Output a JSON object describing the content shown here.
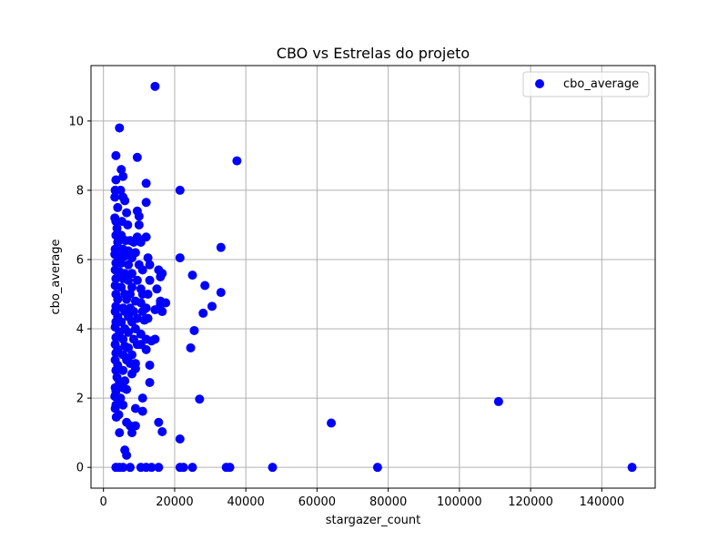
{
  "chart_data": {
    "type": "scatter",
    "title": "CBO vs Estrelas do projeto",
    "xlabel": "stargazer_count",
    "ylabel": "cbo_average",
    "xlim": [
      -3500,
      155000
    ],
    "ylim": [
      -0.6,
      11.6
    ],
    "x_ticks": [
      0,
      20000,
      40000,
      60000,
      80000,
      100000,
      120000,
      140000
    ],
    "x_tick_labels": [
      "0",
      "20000",
      "40000",
      "60000",
      "80000",
      "100000",
      "120000",
      "140000"
    ],
    "y_ticks": [
      0,
      2,
      4,
      6,
      8,
      10
    ],
    "y_tick_labels": [
      "0",
      "2",
      "4",
      "6",
      "8",
      "10"
    ],
    "grid": true,
    "legend_position": "top-right",
    "series": [
      {
        "name": "cbo_average",
        "color": "#0000ff",
        "points": [
          [
            14500,
            11.0
          ],
          [
            4500,
            9.8
          ],
          [
            3500,
            9.0
          ],
          [
            9500,
            8.95
          ],
          [
            37500,
            8.85
          ],
          [
            5000,
            8.6
          ],
          [
            5500,
            8.4
          ],
          [
            3500,
            8.3
          ],
          [
            12000,
            8.2
          ],
          [
            3300,
            8.0
          ],
          [
            4800,
            8.0
          ],
          [
            21500,
            8.0
          ],
          [
            3200,
            7.8
          ],
          [
            5500,
            7.8
          ],
          [
            6000,
            7.7
          ],
          [
            12000,
            7.65
          ],
          [
            4000,
            7.5
          ],
          [
            9500,
            7.4
          ],
          [
            6500,
            7.35
          ],
          [
            3200,
            7.2
          ],
          [
            10000,
            7.25
          ],
          [
            3500,
            7.1
          ],
          [
            5200,
            7.1
          ],
          [
            6800,
            7.0
          ],
          [
            10000,
            7.0
          ],
          [
            3800,
            6.9
          ],
          [
            3500,
            6.7
          ],
          [
            5000,
            6.7
          ],
          [
            12000,
            6.65
          ],
          [
            6200,
            6.55
          ],
          [
            7500,
            6.55
          ],
          [
            9500,
            6.65
          ],
          [
            4000,
            6.5
          ],
          [
            8500,
            6.5
          ],
          [
            10500,
            6.5
          ],
          [
            33000,
            6.35
          ],
          [
            3300,
            6.3
          ],
          [
            5500,
            6.3
          ],
          [
            7000,
            6.25
          ],
          [
            9000,
            6.2
          ],
          [
            3200,
            6.15
          ],
          [
            4500,
            6.1
          ],
          [
            6000,
            6.1
          ],
          [
            8000,
            6.05
          ],
          [
            12500,
            6.05
          ],
          [
            21500,
            6.05
          ],
          [
            3500,
            5.9
          ],
          [
            5000,
            5.9
          ],
          [
            7000,
            5.85
          ],
          [
            10000,
            5.85
          ],
          [
            13000,
            5.85
          ],
          [
            15500,
            5.7
          ],
          [
            3300,
            5.7
          ],
          [
            4500,
            5.65
          ],
          [
            6000,
            5.6
          ],
          [
            8000,
            5.6
          ],
          [
            16500,
            5.6
          ],
          [
            11000,
            5.7
          ],
          [
            25000,
            5.55
          ],
          [
            16000,
            5.5
          ],
          [
            3500,
            5.45
          ],
          [
            5500,
            5.45
          ],
          [
            7000,
            5.4
          ],
          [
            9500,
            5.4
          ],
          [
            13000,
            5.4
          ],
          [
            3300,
            5.25
          ],
          [
            5000,
            5.2
          ],
          [
            8000,
            5.2
          ],
          [
            10500,
            5.15
          ],
          [
            15000,
            5.15
          ],
          [
            28500,
            5.25
          ],
          [
            33000,
            5.05
          ],
          [
            3500,
            5.0
          ],
          [
            6000,
            5.0
          ],
          [
            7500,
            5.0
          ],
          [
            11000,
            5.0
          ],
          [
            12500,
            5.0
          ],
          [
            4000,
            4.85
          ],
          [
            6500,
            4.85
          ],
          [
            9000,
            4.8
          ],
          [
            16000,
            4.8
          ],
          [
            10500,
            4.75
          ],
          [
            17500,
            4.75
          ],
          [
            16000,
            4.7
          ],
          [
            3500,
            4.65
          ],
          [
            5500,
            4.6
          ],
          [
            7500,
            4.6
          ],
          [
            12000,
            4.6
          ],
          [
            30500,
            4.65
          ],
          [
            3300,
            4.5
          ],
          [
            6000,
            4.5
          ],
          [
            8500,
            4.5
          ],
          [
            11000,
            4.5
          ],
          [
            14500,
            4.55
          ],
          [
            16500,
            4.5
          ],
          [
            28000,
            4.45
          ],
          [
            4000,
            4.35
          ],
          [
            7000,
            4.35
          ],
          [
            9500,
            4.3
          ],
          [
            12500,
            4.3
          ],
          [
            3500,
            4.2
          ],
          [
            5000,
            4.2
          ],
          [
            8000,
            4.2
          ],
          [
            11500,
            4.25
          ],
          [
            3300,
            4.05
          ],
          [
            6000,
            4.0
          ],
          [
            9000,
            4.0
          ],
          [
            4500,
            3.9
          ],
          [
            7000,
            3.9
          ],
          [
            10500,
            3.85
          ],
          [
            25500,
            3.95
          ],
          [
            3500,
            3.75
          ],
          [
            5500,
            3.7
          ],
          [
            8500,
            3.7
          ],
          [
            12000,
            3.7
          ],
          [
            14500,
            3.7
          ],
          [
            13500,
            3.65
          ],
          [
            3300,
            3.55
          ],
          [
            6000,
            3.5
          ],
          [
            9500,
            3.55
          ],
          [
            10500,
            3.55
          ],
          [
            4000,
            3.4
          ],
          [
            7000,
            3.45
          ],
          [
            12000,
            3.4
          ],
          [
            24500,
            3.45
          ],
          [
            3500,
            3.3
          ],
          [
            5500,
            3.25
          ],
          [
            8000,
            3.25
          ],
          [
            3300,
            3.1
          ],
          [
            6500,
            3.1
          ],
          [
            4000,
            2.95
          ],
          [
            7500,
            3.0
          ],
          [
            9000,
            3.0
          ],
          [
            13000,
            2.95
          ],
          [
            3500,
            2.8
          ],
          [
            5500,
            2.8
          ],
          [
            8000,
            2.7
          ],
          [
            9000,
            2.85
          ],
          [
            3800,
            2.6
          ],
          [
            6000,
            2.5
          ],
          [
            4500,
            2.45
          ],
          [
            13000,
            2.45
          ],
          [
            3300,
            2.3
          ],
          [
            5500,
            2.3
          ],
          [
            3500,
            2.2
          ],
          [
            6500,
            2.25
          ],
          [
            3200,
            2.05
          ],
          [
            4800,
            2.0
          ],
          [
            11000,
            2.0
          ],
          [
            27000,
            1.97
          ],
          [
            3500,
            1.8
          ],
          [
            5500,
            1.8
          ],
          [
            3300,
            1.7
          ],
          [
            9000,
            1.7
          ],
          [
            11000,
            1.62
          ],
          [
            3600,
            1.45
          ],
          [
            4300,
            1.52
          ],
          [
            15500,
            1.3
          ],
          [
            6500,
            1.3
          ],
          [
            7500,
            1.2
          ],
          [
            9000,
            1.2
          ],
          [
            4500,
            1.0
          ],
          [
            16500,
            1.03
          ],
          [
            8000,
            1.0
          ],
          [
            21500,
            0.82
          ],
          [
            6000,
            0.5
          ],
          [
            6500,
            0.35
          ],
          [
            111000,
            1.9
          ],
          [
            64000,
            1.28
          ],
          [
            3500,
            0.0
          ],
          [
            4500,
            0.0
          ],
          [
            5500,
            0.0
          ],
          [
            7500,
            0.0
          ],
          [
            10500,
            0.0
          ],
          [
            12000,
            0.0
          ],
          [
            13500,
            0.0
          ],
          [
            15500,
            0.0
          ],
          [
            21500,
            0.0
          ],
          [
            22500,
            0.0
          ],
          [
            25000,
            0.0
          ],
          [
            34500,
            0.0
          ],
          [
            35500,
            0.0
          ],
          [
            47500,
            0.0
          ],
          [
            77000,
            0.0
          ],
          [
            148500,
            0.0
          ]
        ]
      }
    ]
  }
}
